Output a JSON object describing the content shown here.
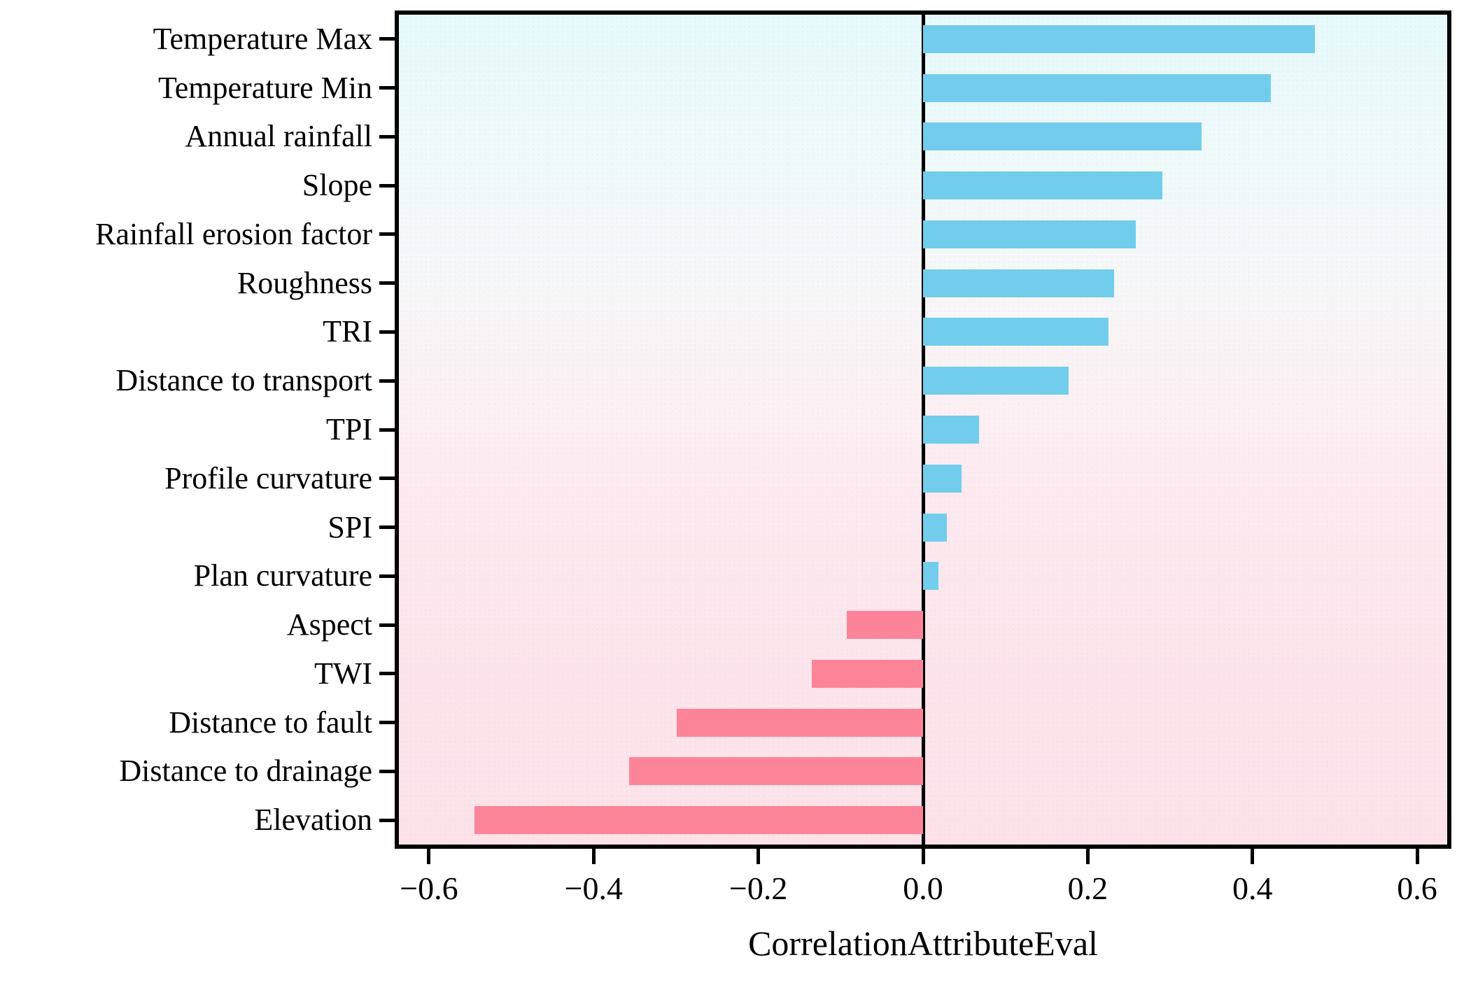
{
  "figure": {
    "kind": "horizontal bar chart of feature correlation scores"
  },
  "chart_data": {
    "type": "bar",
    "orientation": "horizontal",
    "title": "",
    "xlabel": "CorrelationAttributeEval",
    "ylabel": "",
    "categories": [
      "Temperature Max",
      "Temperature Min",
      "Annual rainfall",
      "Slope",
      "Rainfall erosion factor",
      "Roughness",
      "TRI",
      "Distance to transport",
      "TPI",
      "Profile curvature",
      "SPI",
      "Plan curvature",
      "Aspect",
      "TWI",
      "Distance to fault",
      "Distance to drainage",
      "Elevation"
    ],
    "values": [
      0.476,
      0.422,
      0.338,
      0.291,
      0.258,
      0.232,
      0.225,
      0.177,
      0.068,
      0.047,
      0.029,
      0.019,
      -0.093,
      -0.135,
      -0.299,
      -0.357,
      -0.545
    ],
    "xlim": [
      -0.6365,
      0.6365
    ],
    "xticks": [
      {
        "v": -0.6,
        "label": "−0.6"
      },
      {
        "v": -0.4,
        "label": "−0.4"
      },
      {
        "v": -0.2,
        "label": "−0.2"
      },
      {
        "v": 0.0,
        "label": "0.0"
      },
      {
        "v": 0.2,
        "label": "0.2"
      },
      {
        "v": 0.4,
        "label": "0.4"
      },
      {
        "v": 0.6,
        "label": "0.6"
      },
      {
        "v": 0.5,
        "label": ""
      }
    ],
    "grid": false,
    "legend": "none",
    "colors": {
      "positive_bar": "#72cdec",
      "negative_bar": "#fc8498",
      "axis": "#000000",
      "background_top": "#e7fafb",
      "background_bottom": "#fde2ea"
    }
  }
}
